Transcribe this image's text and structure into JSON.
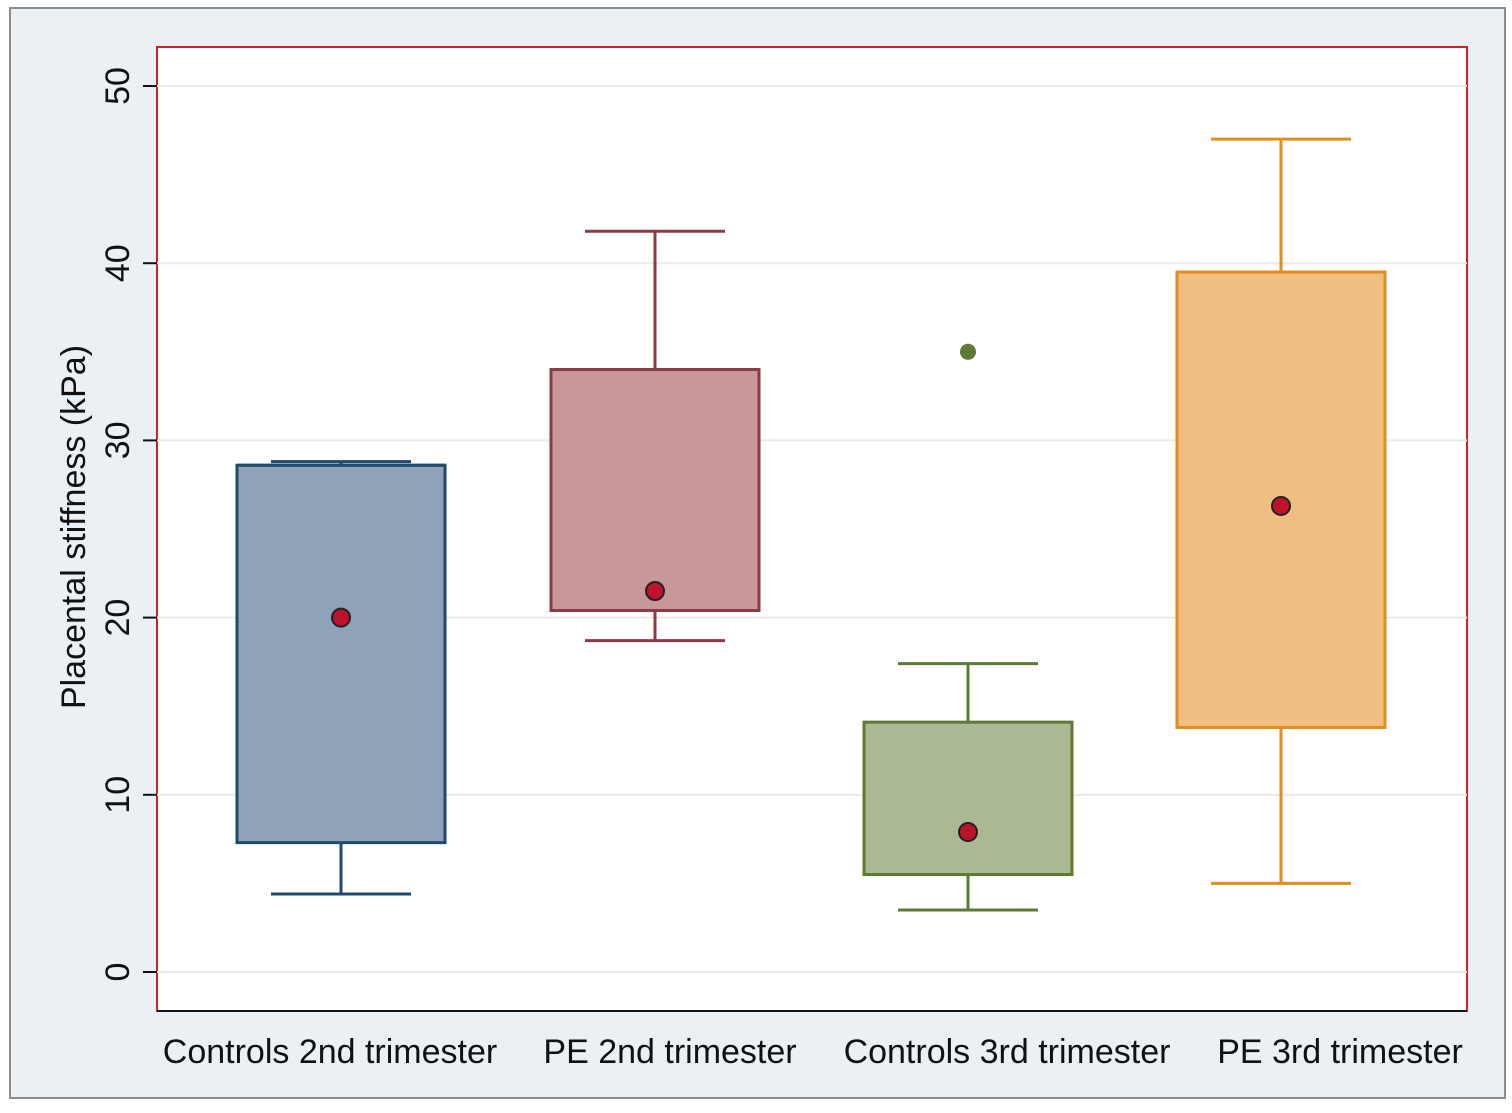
{
  "chart_data": {
    "type": "box",
    "title": "",
    "xlabel": "",
    "ylabel": "Placental stiffness (kPa)",
    "ylim": [
      -2,
      52
    ],
    "yticks": [
      0,
      10,
      20,
      30,
      40,
      50
    ],
    "ytick_labels": [
      "0",
      "10",
      "20",
      "30",
      "40",
      "50"
    ],
    "grid": true,
    "legend": "none",
    "categories": [
      "Controls 2nd trimester",
      "PE 2nd trimester",
      "Controls 3rd trimester",
      "PE 3rd trimester"
    ],
    "boxes": [
      {
        "category": "Controls 2nd trimester",
        "whisker_low": 4.4,
        "q1": 7.3,
        "median": 28.6,
        "q3": 28.6,
        "whisker_high": 28.8,
        "mean": 20.0,
        "outliers": []
      },
      {
        "category": "PE 2nd trimester",
        "whisker_low": 18.7,
        "q1": 20.4,
        "median": 20.4,
        "q3": 34.0,
        "whisker_high": 41.8,
        "mean": 21.5,
        "outliers": []
      },
      {
        "category": "Controls 3rd trimester",
        "whisker_low": 3.5,
        "q1": 5.5,
        "median": 5.5,
        "q3": 14.1,
        "whisker_high": 17.4,
        "mean": 7.9,
        "outliers": [
          35.0
        ]
      },
      {
        "category": "PE 3rd trimester",
        "whisker_low": 5.0,
        "q1": 13.8,
        "median": 39.5,
        "q3": 39.5,
        "whisker_high": 47.0,
        "mean": 26.3,
        "outliers": []
      }
    ],
    "colors": {
      "box_fill": [
        "#8fa3b8",
        "#c79799",
        "#a9b994",
        "#efbe80"
      ],
      "box_stroke": [
        "#1f4a70",
        "#8b3a47",
        "#5e7a34",
        "#e08e1c"
      ],
      "mean_marker": "#c0122c",
      "outlier": "#5e7a34",
      "plot_border": "#d42020",
      "grid": "#eaeaea",
      "outer_background": "#eaf0f3"
    }
  }
}
